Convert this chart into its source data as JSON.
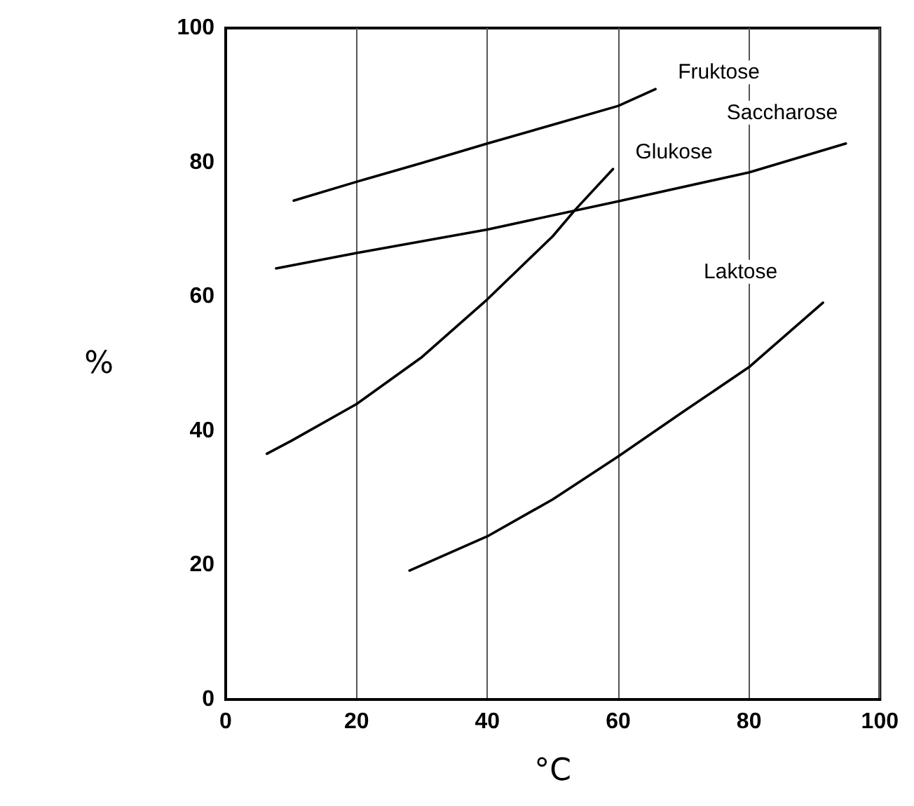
{
  "chart_data": {
    "type": "line",
    "xlabel": "°C",
    "ylabel": "%",
    "xlim": [
      0,
      100
    ],
    "xticks": [
      0,
      20,
      40,
      60,
      80,
      100
    ],
    "ylim": [
      0,
      100
    ],
    "yticks": [
      0,
      20,
      40,
      60,
      80,
      100
    ],
    "grid": "x",
    "legend": false,
    "marker": "none",
    "line_style": "solid",
    "series": [
      {
        "name": "Fruktose",
        "color": "#000000",
        "x": [
          10.4,
          20,
          30,
          40,
          50,
          60,
          65.7
        ],
        "values": [
          74.3,
          77.1,
          79.9,
          82.8,
          85.6,
          88.4,
          90.9
        ]
      },
      {
        "name": "Saccharose",
        "color": "#000000",
        "x": [
          7.7,
          20,
          40,
          60,
          80,
          94.8
        ],
        "values": [
          64.2,
          66.5,
          70,
          74.2,
          78.5,
          82.8
        ]
      },
      {
        "name": "Glukose",
        "color": "#000000",
        "x": [
          6.3,
          10,
          20,
          30,
          40,
          50,
          53.4,
          59.2
        ],
        "values": [
          36.6,
          38.5,
          44,
          51,
          59.6,
          69,
          72.9,
          79
        ]
      },
      {
        "name": "Laktose",
        "color": "#000000",
        "x": [
          28.1,
          40,
          50,
          60,
          70,
          80,
          91.3
        ],
        "values": [
          19.2,
          24.3,
          29.8,
          36.2,
          42.9,
          49.5,
          59.1
        ]
      }
    ]
  }
}
